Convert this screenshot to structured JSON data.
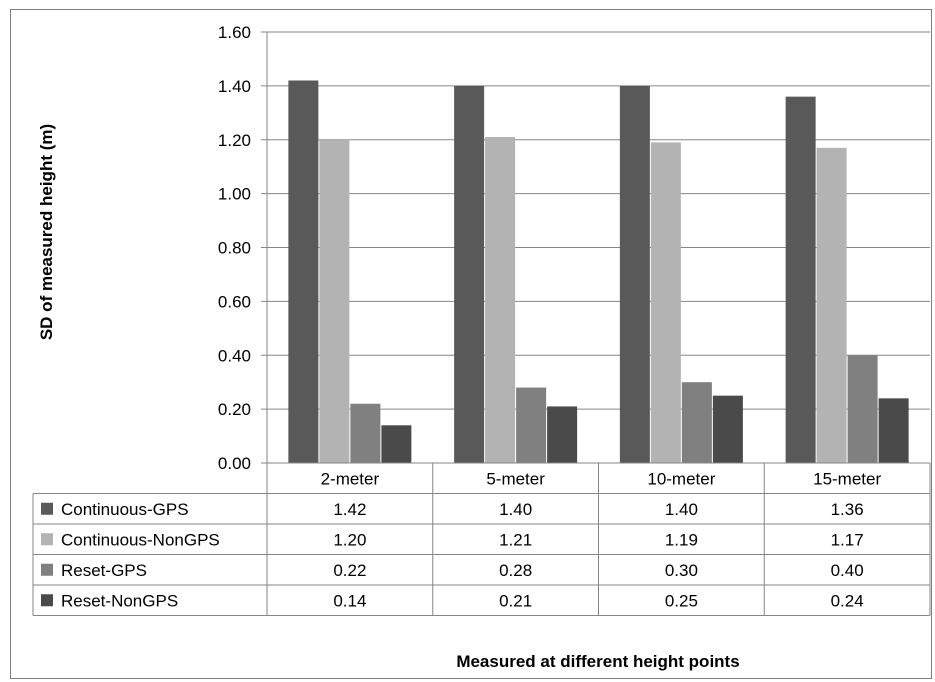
{
  "chart_data": {
    "type": "bar",
    "categories": [
      "2-meter",
      "5-meter",
      "10-meter",
      "15-meter"
    ],
    "series": [
      {
        "name": "Continuous-GPS",
        "values": [
          1.42,
          1.4,
          1.4,
          1.36
        ],
        "color": "#595959"
      },
      {
        "name": "Continuous-NonGPS",
        "values": [
          1.2,
          1.21,
          1.19,
          1.17
        ],
        "color": "#b3b3b3"
      },
      {
        "name": "Reset-GPS",
        "values": [
          0.22,
          0.28,
          0.3,
          0.4
        ],
        "color": "#808080"
      },
      {
        "name": "Reset-NonGPS",
        "values": [
          0.14,
          0.21,
          0.25,
          0.24
        ],
        "color": "#4a4a4a"
      }
    ],
    "yticks": [
      "0.00",
      "0.20",
      "0.40",
      "0.60",
      "0.80",
      "1.00",
      "1.20",
      "1.40",
      "1.60"
    ],
    "table_values": [
      [
        "1.42",
        "1.40",
        "1.40",
        "1.36"
      ],
      [
        "1.20",
        "1.21",
        "1.19",
        "1.17"
      ],
      [
        "0.22",
        "0.28",
        "0.30",
        "0.40"
      ],
      [
        "0.14",
        "0.21",
        "0.25",
        "0.24"
      ]
    ],
    "ylim": [
      0,
      1.6
    ],
    "ylabel": "SD of measured height (m)",
    "xlabel": "Measured at different height points",
    "grid": "horizontal",
    "legend": "data-table"
  }
}
